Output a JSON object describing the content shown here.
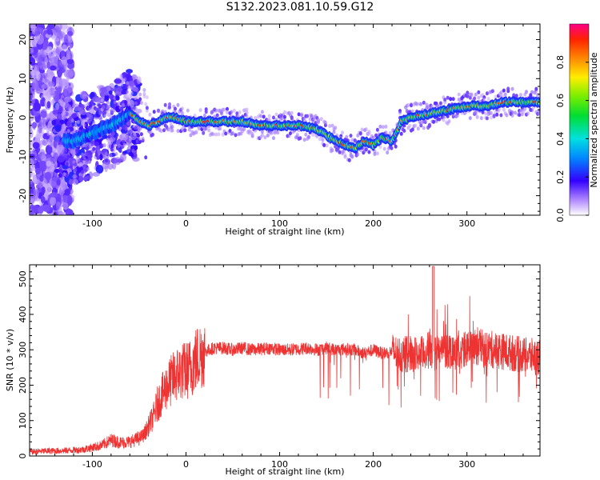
{
  "title": "S132.2023.081.10.59.G12",
  "colors": {
    "snr_line": "#ee3333",
    "axis": "#000000"
  },
  "chart_data": [
    {
      "type": "heatmap",
      "xlabel": "Height of straight line (km)",
      "ylabel": "Frequency (Hz)",
      "xlim": [
        -167,
        378
      ],
      "ylim": [
        -25,
        24
      ],
      "xticks": [
        -100,
        0,
        100,
        200,
        300
      ],
      "yticks": [
        -20,
        -10,
        0,
        10,
        20
      ],
      "colorbar": {
        "label": "Normalized spectral amplitude",
        "range": [
          0,
          1
        ],
        "ticks": [
          "0.0",
          "0.2",
          "0.4",
          "0.6",
          "0.8"
        ]
      },
      "ridge_x": [
        -167,
        -140,
        -120,
        -100,
        -80,
        -60,
        -50,
        -40,
        -30,
        -20,
        -10,
        0,
        20,
        40,
        60,
        80,
        100,
        120,
        140,
        160,
        170,
        180,
        190,
        200,
        210,
        220,
        230,
        240,
        260,
        280,
        300,
        320,
        340,
        360,
        378
      ],
      "ridge_y": [
        -5,
        -6,
        -6,
        -4,
        -2,
        1,
        -1,
        -2,
        -1,
        0,
        0,
        -1,
        -1,
        -1,
        -1,
        -2,
        -2,
        -2,
        -3,
        -6,
        -7,
        -8,
        -6,
        -7,
        -5,
        -6,
        -1,
        0,
        1,
        2,
        3,
        3,
        4,
        4,
        4
      ]
    },
    {
      "type": "line",
      "xlabel": "Height of straight line (km)",
      "ylabel": "SNR (10 * v/v)",
      "xlim": [
        -167,
        378
      ],
      "ylim": [
        0,
        540
      ],
      "xticks": [
        -100,
        0,
        100,
        200,
        300
      ],
      "yticks": [
        0,
        100,
        200,
        300,
        400,
        500
      ],
      "series": [
        {
          "x": [
            -167,
            -150,
            -130,
            -110,
            -90,
            -80,
            -70,
            -60,
            -50,
            -45,
            -40,
            -35,
            -30,
            -25,
            -20,
            -15,
            -10,
            -5,
            0,
            5,
            10,
            15,
            20,
            25,
            30,
            40,
            50,
            60,
            70,
            80,
            90,
            100,
            110,
            120,
            130,
            140,
            150,
            160,
            170,
            180,
            190,
            200,
            210,
            220,
            230,
            240,
            250,
            260,
            265,
            270,
            280,
            290,
            300,
            310,
            320,
            330,
            340,
            350,
            360,
            378
          ],
          "y": [
            12,
            14,
            15,
            18,
            30,
            45,
            38,
            40,
            50,
            60,
            85,
            110,
            150,
            175,
            200,
            215,
            230,
            240,
            240,
            250,
            270,
            285,
            295,
            300,
            305,
            305,
            300,
            305,
            300,
            302,
            305,
            300,
            300,
            302,
            305,
            300,
            305,
            300,
            302,
            300,
            290,
            300,
            290,
            295,
            285,
            290,
            285,
            300,
            290,
            295,
            300,
            295,
            300,
            310,
            300,
            300,
            295,
            290,
            285,
            280
          ]
        }
      ]
    }
  ]
}
